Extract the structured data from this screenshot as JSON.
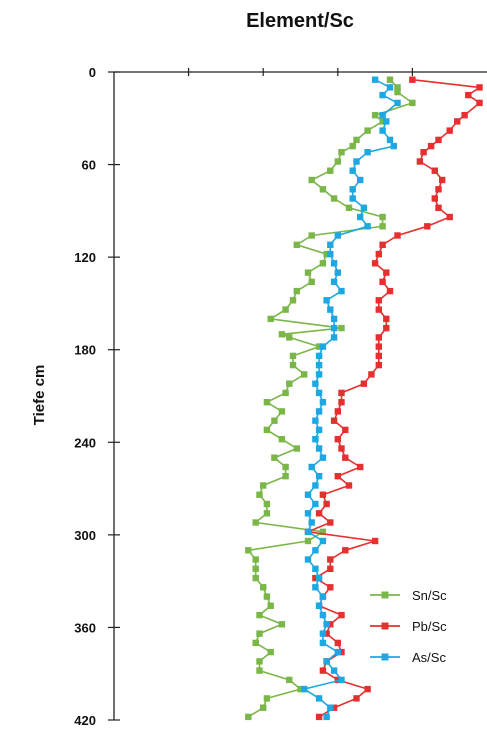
{
  "chart_data": {
    "type": "line",
    "title": "Element/Sc",
    "ylabel": "Tiefe cm",
    "xlabel": "",
    "y_axis_inverted": true,
    "ylim": [
      0,
      420
    ],
    "yticks": [
      "0",
      "60",
      "120",
      "180",
      "240",
      "300",
      "360",
      "420"
    ],
    "xlim": [
      0,
      1
    ],
    "x_tick_labels_shown": false,
    "grid": false,
    "legend_position": "bottom-right",
    "series": [
      {
        "name": "Sn/Sc",
        "color": "#7ab648",
        "depth": [
          5,
          10,
          13,
          20,
          28,
          32,
          38,
          44,
          48,
          52,
          58,
          64,
          70,
          76,
          82,
          88,
          94,
          100,
          106,
          112,
          118,
          124,
          130,
          136,
          142,
          148,
          154,
          160,
          166,
          170,
          172,
          178,
          184,
          190,
          196,
          202,
          208,
          214,
          220,
          226,
          232,
          238,
          244,
          250,
          256,
          262,
          268,
          274,
          280,
          286,
          292,
          298,
          304,
          310,
          316,
          322,
          328,
          334,
          340,
          346,
          352,
          358,
          364,
          370,
          376,
          382,
          388,
          394,
          400,
          406,
          412,
          418
        ],
        "values": [
          0.74,
          0.76,
          0.76,
          0.8,
          0.7,
          0.72,
          0.68,
          0.65,
          0.64,
          0.61,
          0.6,
          0.58,
          0.53,
          0.56,
          0.59,
          0.63,
          0.72,
          0.72,
          0.53,
          0.49,
          0.57,
          0.56,
          0.52,
          0.53,
          0.49,
          0.48,
          0.46,
          0.42,
          0.61,
          0.45,
          0.47,
          0.55,
          0.48,
          0.48,
          0.51,
          0.47,
          0.46,
          0.41,
          0.45,
          0.43,
          0.41,
          0.45,
          0.49,
          0.43,
          0.46,
          0.46,
          0.4,
          0.39,
          0.41,
          0.41,
          0.38,
          0.56,
          0.52,
          0.36,
          0.38,
          0.38,
          0.38,
          0.4,
          0.41,
          0.42,
          0.39,
          0.45,
          0.39,
          0.38,
          0.42,
          0.39,
          0.39,
          0.47,
          0.5,
          0.41,
          0.4,
          0.36
        ]
      },
      {
        "name": "Pb/Sc",
        "color": "#e53030",
        "depth": [
          5,
          10,
          15,
          20,
          28,
          32,
          38,
          44,
          48,
          52,
          58,
          64,
          70,
          76,
          82,
          88,
          94,
          100,
          106,
          112,
          118,
          124,
          130,
          136,
          142,
          148,
          154,
          160,
          166,
          172,
          178,
          184,
          190,
          196,
          202,
          208,
          214,
          220,
          226,
          232,
          238,
          244,
          250,
          256,
          262,
          268,
          274,
          280,
          286,
          292,
          298,
          304,
          310,
          316,
          322,
          328,
          334,
          340,
          346,
          352,
          358,
          364,
          370,
          376,
          382,
          388,
          394,
          400,
          406,
          412,
          418
        ],
        "values": [
          0.8,
          0.98,
          0.95,
          0.98,
          0.94,
          0.92,
          0.9,
          0.87,
          0.85,
          0.83,
          0.82,
          0.86,
          0.88,
          0.87,
          0.86,
          0.87,
          0.9,
          0.84,
          0.76,
          0.72,
          0.71,
          0.7,
          0.73,
          0.72,
          0.74,
          0.71,
          0.71,
          0.73,
          0.73,
          0.71,
          0.71,
          0.71,
          0.71,
          0.69,
          0.67,
          0.61,
          0.61,
          0.6,
          0.59,
          0.62,
          0.6,
          0.61,
          0.62,
          0.66,
          0.6,
          0.63,
          0.56,
          0.57,
          0.55,
          0.58,
          0.52,
          0.7,
          0.62,
          0.58,
          0.58,
          0.54,
          0.58,
          0.56,
          0.55,
          0.61,
          0.58,
          0.57,
          0.6,
          0.61,
          0.57,
          0.56,
          0.6,
          0.68,
          0.65,
          0.59,
          0.55
        ]
      },
      {
        "name": "As/Sc",
        "color": "#1ea7e1",
        "depth": [
          5,
          10,
          15,
          20,
          28,
          32,
          38,
          44,
          48,
          52,
          58,
          64,
          70,
          76,
          82,
          88,
          94,
          100,
          106,
          112,
          118,
          124,
          130,
          136,
          142,
          148,
          154,
          160,
          166,
          172,
          178,
          184,
          190,
          196,
          202,
          208,
          214,
          220,
          226,
          232,
          238,
          244,
          250,
          256,
          262,
          268,
          274,
          280,
          286,
          292,
          298,
          304,
          310,
          316,
          322,
          328,
          334,
          340,
          346,
          352,
          358,
          364,
          370,
          376,
          382,
          388,
          394,
          400,
          406,
          412,
          418
        ],
        "values": [
          0.7,
          0.74,
          0.72,
          0.76,
          0.72,
          0.73,
          0.72,
          0.74,
          0.75,
          0.68,
          0.65,
          0.64,
          0.66,
          0.64,
          0.64,
          0.67,
          0.66,
          0.68,
          0.6,
          0.58,
          0.58,
          0.59,
          0.6,
          0.59,
          0.61,
          0.57,
          0.58,
          0.59,
          0.59,
          0.59,
          0.56,
          0.55,
          0.55,
          0.55,
          0.54,
          0.55,
          0.56,
          0.55,
          0.54,
          0.55,
          0.54,
          0.55,
          0.56,
          0.53,
          0.55,
          0.54,
          0.52,
          0.54,
          0.52,
          0.53,
          0.52,
          0.56,
          0.54,
          0.52,
          0.54,
          0.55,
          0.54,
          0.56,
          0.55,
          0.56,
          0.57,
          0.56,
          0.56,
          0.6,
          0.57,
          0.59,
          0.61,
          0.51,
          0.55,
          0.58,
          0.57
        ]
      }
    ]
  }
}
